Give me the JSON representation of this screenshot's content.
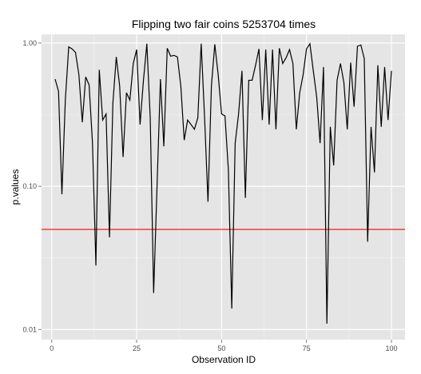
{
  "chart_data": {
    "type": "line",
    "title": "Flipping two fair coins  5253704  times",
    "xlabel": "Observation ID",
    "ylabel": "p.values",
    "xlim": [
      -3,
      104
    ],
    "ylim": [
      0.0085,
      1.15
    ],
    "y_scale": "log10",
    "x_ticks": [
      0,
      25,
      50,
      75,
      100
    ],
    "x_tick_labels": [
      "0",
      "25",
      "50",
      "75",
      "100"
    ],
    "y_ticks": [
      0.01,
      0.1,
      1.0
    ],
    "y_tick_labels": [
      "0.01",
      "0.10",
      "1.00"
    ],
    "grid": true,
    "background": "#e5e5e5",
    "grid_color": "#ffffff",
    "line_color": "#000000",
    "reference_line": {
      "y": 0.05,
      "color": "#ff0000"
    },
    "series": [
      {
        "x": [
          1,
          2,
          3,
          4,
          5,
          6,
          7,
          8,
          9,
          10,
          11,
          12,
          13,
          14,
          15,
          16,
          17,
          18,
          19,
          20,
          21,
          22,
          23,
          24,
          25,
          26,
          27,
          28,
          29,
          30,
          31,
          32,
          33,
          34,
          35,
          36,
          37,
          38,
          39,
          40,
          41,
          42,
          43,
          44,
          45,
          46,
          47,
          48,
          49,
          50,
          51,
          52,
          53,
          54,
          55,
          56,
          57,
          58,
          59,
          60,
          61,
          62,
          63,
          64,
          65,
          66,
          67,
          68,
          69,
          70,
          71,
          72,
          73,
          74,
          75,
          76,
          77,
          78,
          79,
          80,
          81,
          82,
          83,
          84,
          85,
          86,
          87,
          88,
          89,
          90,
          91,
          92,
          93,
          94,
          95,
          96,
          97,
          98,
          99,
          100
        ],
        "y": [
          0.56,
          0.46,
          0.088,
          0.4,
          0.94,
          0.91,
          0.86,
          0.6,
          0.28,
          0.58,
          0.51,
          0.2,
          0.028,
          0.65,
          0.29,
          0.32,
          0.044,
          0.38,
          0.8,
          0.5,
          0.16,
          0.45,
          0.4,
          0.72,
          0.9,
          0.27,
          0.55,
          0.99,
          0.3,
          0.018,
          0.1,
          0.56,
          0.19,
          0.92,
          0.81,
          0.82,
          0.8,
          0.5,
          0.21,
          0.29,
          0.27,
          0.25,
          0.3,
          0.99,
          0.3,
          0.078,
          0.5,
          0.98,
          0.6,
          0.32,
          0.31,
          0.13,
          0.014,
          0.2,
          0.32,
          0.64,
          0.083,
          0.55,
          0.55,
          0.7,
          0.91,
          0.29,
          0.9,
          0.27,
          0.9,
          0.25,
          0.92,
          0.72,
          0.79,
          0.9,
          0.72,
          0.25,
          0.45,
          0.6,
          0.91,
          0.99,
          0.64,
          0.42,
          0.2,
          0.68,
          0.011,
          0.26,
          0.14,
          0.55,
          0.72,
          0.53,
          0.25,
          0.73,
          0.36,
          0.95,
          0.97,
          0.78,
          0.041,
          0.26,
          0.125,
          0.7,
          0.26,
          0.68,
          0.29,
          0.64
        ]
      }
    ]
  }
}
